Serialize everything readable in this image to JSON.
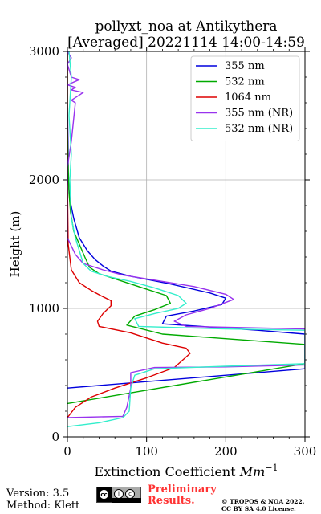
{
  "chart_data": {
    "type": "line",
    "title": "pollyxt_noa at Antikythera",
    "subtitle": "[Averaged] 20221114 14:00-14:59",
    "xlabel": "Extinction Coefficient [Mm⁻¹]",
    "xlabel_main": "Extinction Coefficient ",
    "xlabel_unit": "Mm",
    "xlabel_sup": "−1",
    "ylabel": "Height (m)",
    "xlim": [
      0,
      300
    ],
    "ylim": [
      0,
      3000
    ],
    "xticks": [
      "0",
      "100",
      "200",
      "300"
    ],
    "yticks": [
      "0",
      "1000",
      "2000",
      "3000"
    ],
    "grid": true,
    "legend_position": "top-right",
    "series": [
      {
        "name": "355 nm",
        "color": "#0000dd",
        "points": [
          [
            0,
            380
          ],
          [
            300,
            530
          ],
          [
            300,
            800
          ],
          [
            240,
            830
          ],
          [
            120,
            880
          ],
          [
            125,
            940
          ],
          [
            160,
            980
          ],
          [
            195,
            1030
          ],
          [
            200,
            1080
          ],
          [
            180,
            1120
          ],
          [
            130,
            1190
          ],
          [
            80,
            1250
          ],
          [
            55,
            1290
          ],
          [
            45,
            1330
          ],
          [
            35,
            1380
          ],
          [
            25,
            1450
          ],
          [
            15,
            1550
          ],
          [
            8,
            1700
          ],
          [
            3,
            1850
          ],
          [
            1,
            2000
          ],
          [
            1,
            2200
          ],
          [
            0,
            2600
          ],
          [
            0,
            3000
          ]
        ]
      },
      {
        "name": "532 nm",
        "color": "#00aa00",
        "points": [
          [
            0,
            260
          ],
          [
            300,
            570
          ],
          [
            300,
            720
          ],
          [
            210,
            760
          ],
          [
            120,
            800
          ],
          [
            75,
            870
          ],
          [
            85,
            940
          ],
          [
            110,
            990
          ],
          [
            130,
            1040
          ],
          [
            125,
            1100
          ],
          [
            95,
            1160
          ],
          [
            60,
            1230
          ],
          [
            40,
            1270
          ],
          [
            28,
            1320
          ],
          [
            22,
            1400
          ],
          [
            15,
            1500
          ],
          [
            8,
            1600
          ],
          [
            4,
            1750
          ],
          [
            2,
            1900
          ],
          [
            1,
            2100
          ],
          [
            0,
            2400
          ],
          [
            0,
            3000
          ]
        ]
      },
      {
        "name": "1064 nm",
        "color": "#dd0000",
        "points": [
          [
            0,
            150
          ],
          [
            10,
            230
          ],
          [
            30,
            310
          ],
          [
            60,
            380
          ],
          [
            100,
            460
          ],
          [
            135,
            540
          ],
          [
            155,
            650
          ],
          [
            150,
            690
          ],
          [
            120,
            730
          ],
          [
            80,
            810
          ],
          [
            40,
            860
          ],
          [
            38,
            900
          ],
          [
            45,
            960
          ],
          [
            55,
            1020
          ],
          [
            55,
            1060
          ],
          [
            42,
            1100
          ],
          [
            30,
            1140
          ],
          [
            15,
            1200
          ],
          [
            5,
            1300
          ],
          [
            1,
            1500
          ],
          [
            0,
            2000
          ],
          [
            0,
            2500
          ],
          [
            0,
            3000
          ]
        ]
      },
      {
        "name": "355 nm (NR)",
        "color": "#9933ee",
        "points": [
          [
            0,
            150
          ],
          [
            70,
            160
          ],
          [
            75,
            230
          ],
          [
            80,
            380
          ],
          [
            80,
            500
          ],
          [
            110,
            540
          ],
          [
            200,
            545
          ],
          [
            300,
            560
          ],
          [
            300,
            840
          ],
          [
            150,
            860
          ],
          [
            135,
            900
          ],
          [
            150,
            950
          ],
          [
            180,
            1000
          ],
          [
            210,
            1070
          ],
          [
            200,
            1110
          ],
          [
            160,
            1170
          ],
          [
            110,
            1220
          ],
          [
            70,
            1260
          ],
          [
            45,
            1300
          ],
          [
            20,
            1350
          ],
          [
            10,
            1420
          ],
          [
            0,
            1550
          ],
          [
            0,
            2100
          ],
          [
            5,
            2300
          ],
          [
            10,
            2600
          ],
          [
            5,
            2620
          ],
          [
            20,
            2680
          ],
          [
            5,
            2700
          ],
          [
            10,
            2720
          ],
          [
            0,
            2740
          ],
          [
            15,
            2780
          ],
          [
            5,
            2800
          ],
          [
            0,
            2900
          ],
          [
            5,
            2950
          ],
          [
            0,
            3000
          ]
        ]
      },
      {
        "name": "532 nm (NR)",
        "color": "#33eecc",
        "points": [
          [
            0,
            80
          ],
          [
            40,
            110
          ],
          [
            70,
            150
          ],
          [
            78,
            200
          ],
          [
            80,
            380
          ],
          [
            85,
            480
          ],
          [
            110,
            530
          ],
          [
            200,
            550
          ],
          [
            300,
            570
          ],
          [
            300,
            830
          ],
          [
            200,
            840
          ],
          [
            90,
            860
          ],
          [
            85,
            920
          ],
          [
            110,
            960
          ],
          [
            140,
            1000
          ],
          [
            150,
            1040
          ],
          [
            140,
            1100
          ],
          [
            110,
            1160
          ],
          [
            80,
            1210
          ],
          [
            50,
            1250
          ],
          [
            30,
            1290
          ],
          [
            20,
            1350
          ],
          [
            15,
            1450
          ],
          [
            10,
            1550
          ],
          [
            5,
            1700
          ],
          [
            3,
            2000
          ],
          [
            5,
            2200
          ],
          [
            2,
            2500
          ],
          [
            5,
            2800
          ],
          [
            2,
            3000
          ]
        ]
      }
    ]
  },
  "footer": {
    "version": "Version: 3.5",
    "method": "Method: Klett",
    "license_badge": "cc-by-sa-icon",
    "preliminary_line1": "Preliminary",
    "preliminary_line2": "Results.",
    "copyright_line1": "© TROPOS & NOA 2022.",
    "copyright_line2": "CC BY SA 4.0 License."
  }
}
